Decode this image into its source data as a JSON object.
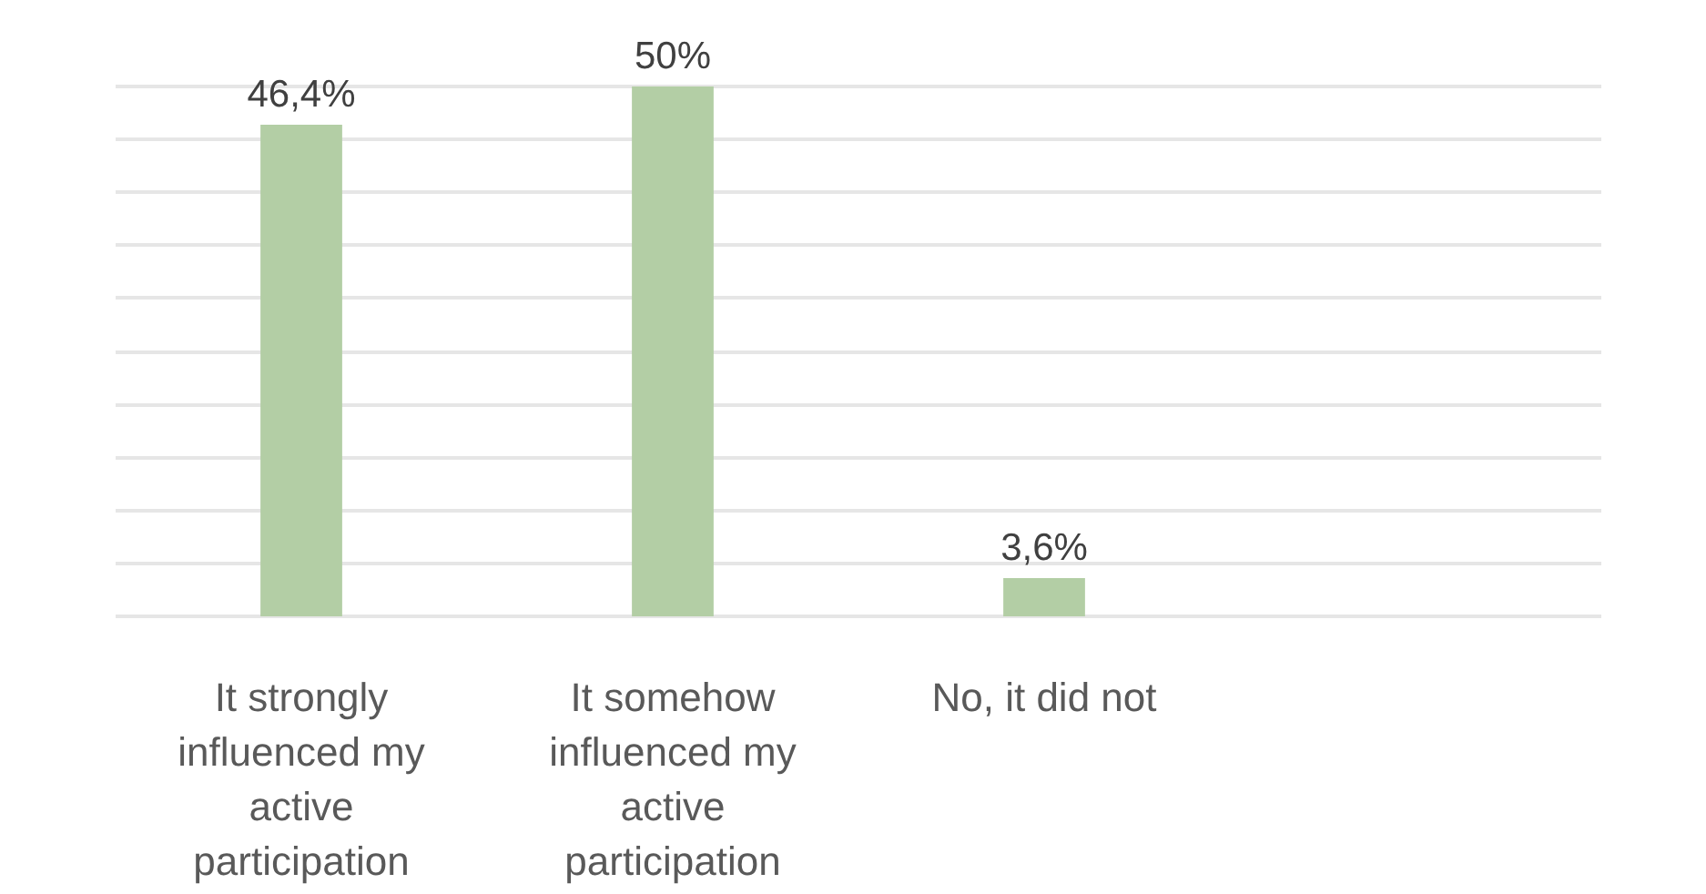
{
  "chart_data": {
    "type": "bar",
    "categories": [
      "It strongly influenced my active participation",
      "It somehow influenced my active participation",
      "No, it did not",
      null
    ],
    "values": [
      46.4,
      50,
      3.6,
      null
    ],
    "color": "#b3cea5",
    "value_labels": [
      "46,4%",
      "50%",
      "3,6%",
      null
    ],
    "ylim": [
      0,
      50
    ],
    "yticks": [
      {
        "value": 0,
        "label": null
      },
      {
        "value": 5,
        "label": null
      },
      {
        "value": 10,
        "label": null
      },
      {
        "value": 15,
        "label": null
      },
      {
        "value": 20,
        "label": null
      },
      {
        "value": 25,
        "label": null
      },
      {
        "value": 30,
        "label": null
      },
      {
        "value": 35,
        "label": null
      },
      {
        "value": 40,
        "label": null
      },
      {
        "value": 45,
        "label": null
      },
      {
        "value": 50,
        "label": null
      }
    ],
    "grid": "y",
    "tick_labels": "x"
  }
}
